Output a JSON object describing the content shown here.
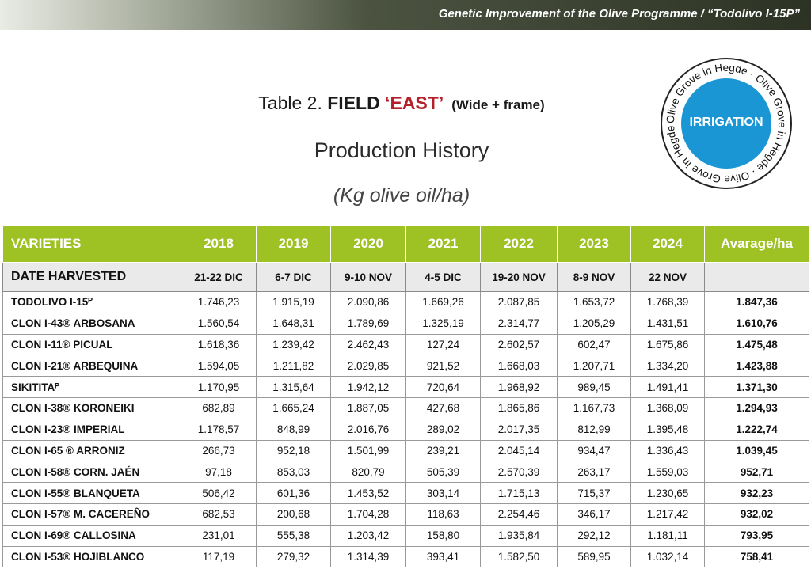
{
  "banner": "Genetic Improvement of the Olive Programme / “Todolivo I-15P”",
  "title": {
    "prefix": "Table 2. ",
    "field": "FIELD ",
    "east": "‘EAST’",
    "note": "(Wide + frame)"
  },
  "subtitle": "Production History",
  "units": "(Kg olive oil/ha)",
  "seal": {
    "label": "IRRIGATION",
    "ring_text": "Olive Grove in Hegde · Olive Grove in Hegde · Olive Grove in Hegde ·",
    "colors": {
      "outer": "#ffffff",
      "inner": "#1a96d4",
      "border": "#222222"
    }
  },
  "colors": {
    "header_green": "#9ec124",
    "east_red": "#b3202a"
  },
  "table": {
    "headers": [
      "VARIETIES",
      "2018",
      "2019",
      "2020",
      "2021",
      "2022",
      "2023",
      "2024",
      "Avarage/ha"
    ],
    "harvest": [
      "DATE HARVESTED",
      "21-22 DIC",
      "6-7 DIC",
      "9-10 NOV",
      "4-5 DIC",
      "19-20 NOV",
      "8-9 NOV",
      "22 NOV",
      ""
    ],
    "rows": [
      [
        "TODOLIVO I-15ᴾ",
        "1.746,23",
        "1.915,19",
        "2.090,86",
        "1.669,26",
        "2.087,85",
        "1.653,72",
        "1.768,39",
        "1.847,36"
      ],
      [
        "CLON I-43® ARBOSANA",
        "1.560,54",
        "1.648,31",
        "1.789,69",
        "1.325,19",
        "2.314,77",
        "1.205,29",
        "1.431,51",
        "1.610,76"
      ],
      [
        "CLON I-11® PICUAL",
        "1.618,36",
        "1.239,42",
        "2.462,43",
        "127,24",
        "2.602,57",
        "602,47",
        "1.675,86",
        "1.475,48"
      ],
      [
        "CLON I-21® ARBEQUINA",
        "1.594,05",
        "1.211,82",
        "2.029,85",
        "921,52",
        "1.668,03",
        "1.207,71",
        "1.334,20",
        "1.423,88"
      ],
      [
        "SIKITITAᴾ",
        "1.170,95",
        "1.315,64",
        "1.942,12",
        "720,64",
        "1.968,92",
        "989,45",
        "1.491,41",
        "1.371,30"
      ],
      [
        "CLON I-38® KORONEIKI",
        "682,89",
        "1.665,24",
        "1.887,05",
        "427,68",
        "1.865,86",
        "1.167,73",
        "1.368,09",
        "1.294,93"
      ],
      [
        "CLON I-23®  IMPERIAL",
        "1.178,57",
        "848,99",
        "2.016,76",
        "289,02",
        "2.017,35",
        "812,99",
        "1.395,48",
        "1.222,74"
      ],
      [
        "CLON I-65 ®  ARRONIZ",
        "266,73",
        "952,18",
        "1.501,99",
        "239,21",
        "2.045,14",
        "934,47",
        "1.336,43",
        "1.039,45"
      ],
      [
        "CLON I-58® CORN. JAÉN",
        "97,18",
        "853,03",
        "820,79",
        "505,39",
        "2.570,39",
        "263,17",
        "1.559,03",
        "952,71"
      ],
      [
        "CLON I-55® BLANQUETA",
        "506,42",
        "601,36",
        "1.453,52",
        "303,14",
        "1.715,13",
        "715,37",
        "1.230,65",
        "932,23"
      ],
      [
        "CLON I-57®  M. CACEREÑO",
        "682,53",
        "200,68",
        "1.704,28",
        "118,63",
        "2.254,46",
        "346,17",
        "1.217,42",
        "932,02"
      ],
      [
        "CLON I-69® CALLOSINA",
        "231,01",
        "555,38",
        "1.203,42",
        "158,80",
        "1.935,84",
        "292,12",
        "1.181,11",
        "793,95"
      ],
      [
        "CLON I-53® HOJIBLANCO",
        "117,19",
        "279,32",
        "1.314,39",
        "393,41",
        "1.582,50",
        "589,95",
        "1.032,14",
        "758,41"
      ]
    ]
  }
}
